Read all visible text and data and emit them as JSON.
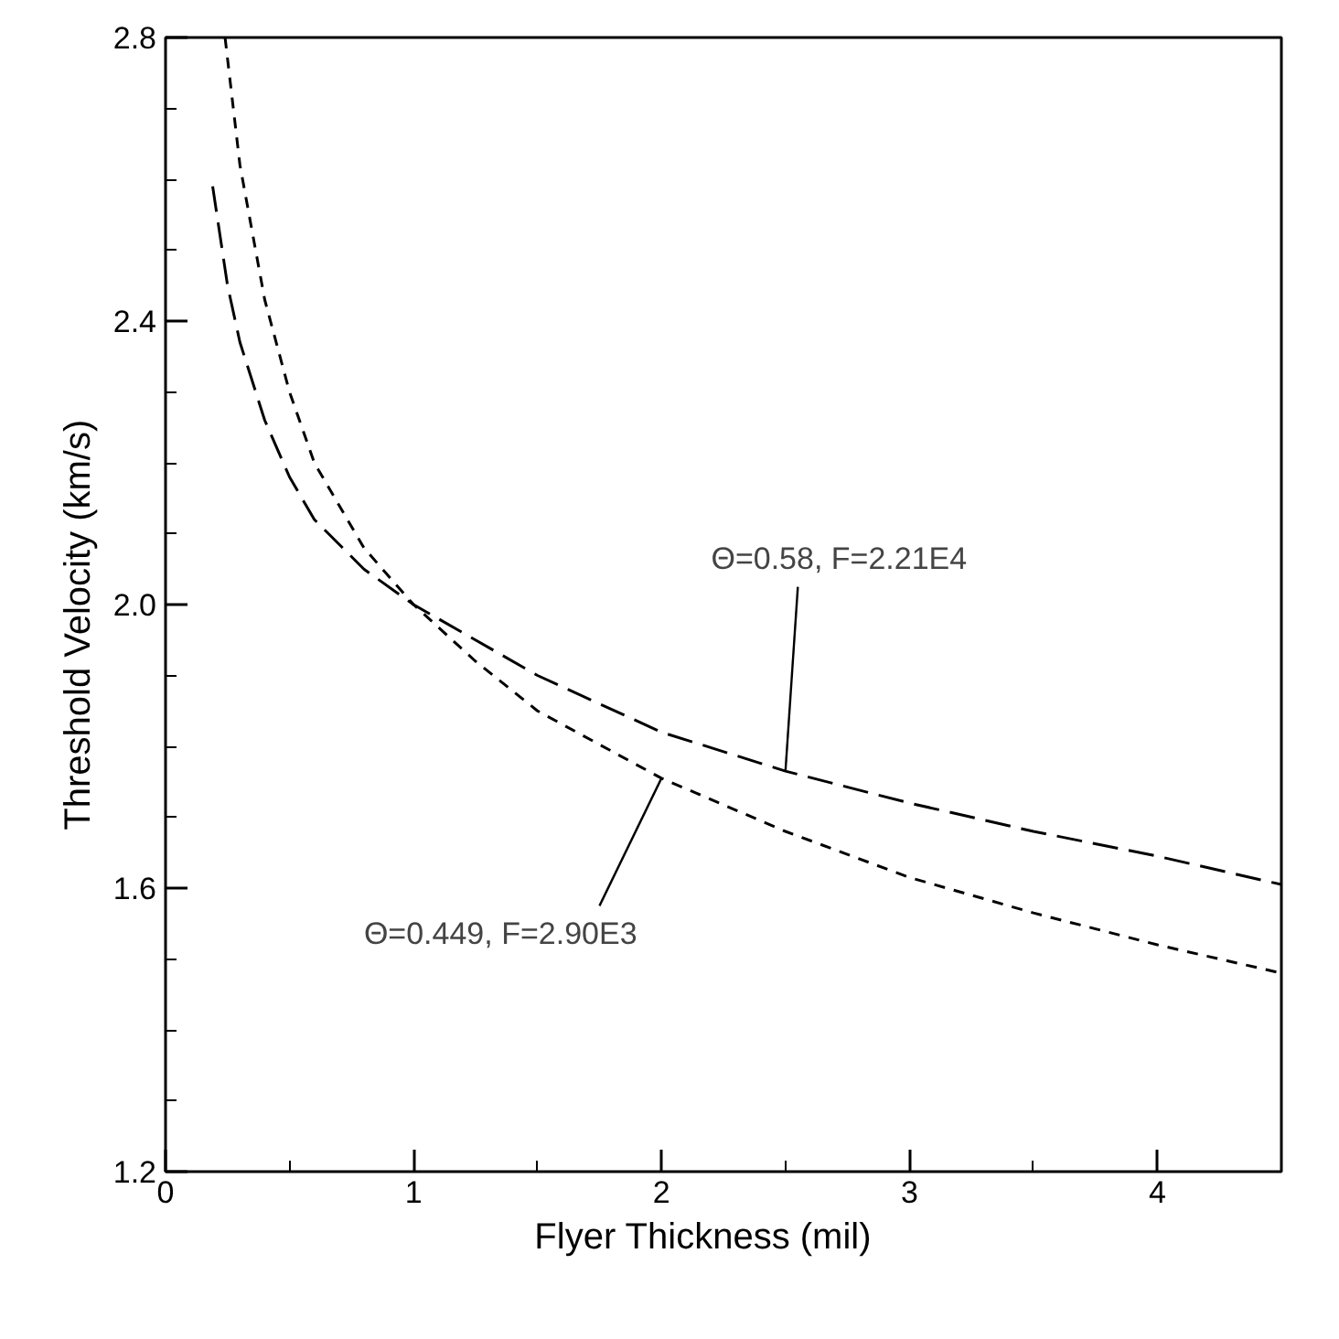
{
  "chart_data": {
    "type": "line",
    "xlabel": "Flyer Thickness     (mil)",
    "ylabel": "Threshold Velocity     (km/s)",
    "xlim": [
      0,
      4.5
    ],
    "ylim": [
      1.2,
      2.8
    ],
    "xticks": [
      0,
      {
        "value": 0.5,
        "label": null
      },
      1,
      {
        "value": 1.5,
        "label": null
      },
      2,
      {
        "value": 2.5,
        "label": null
      },
      3,
      {
        "value": 3.5,
        "label": null
      },
      4
    ],
    "yticks": [
      1.2,
      {
        "value": 1.3,
        "label": null
      },
      {
        "value": 1.4,
        "label": null
      },
      {
        "value": 1.5,
        "label": null
      },
      1.6,
      {
        "value": 1.7,
        "label": null
      },
      {
        "value": 1.8,
        "label": null
      },
      {
        "value": 1.9,
        "label": null
      },
      {
        "value": 2.0,
        "label": "2.0"
      },
      {
        "value": 2.1,
        "label": null
      },
      {
        "value": 2.2,
        "label": null
      },
      {
        "value": 2.3,
        "label": null
      },
      2.4,
      {
        "value": 2.5,
        "label": null
      },
      {
        "value": 2.6,
        "label": null
      },
      {
        "value": 2.7,
        "label": null
      },
      2.8
    ],
    "grid": false,
    "marker": "none",
    "series": [
      {
        "color": "#000000",
        "line_style": "dashed",
        "x": [
          0.19,
          0.25,
          0.3,
          0.4,
          0.5,
          0.6,
          0.8,
          1.0,
          1.25,
          1.5,
          2,
          2.5,
          3,
          3.5,
          4,
          4.5
        ],
        "values": [
          2.59,
          2.45,
          2.37,
          2.26,
          2.18,
          2.12,
          2.05,
          2.0,
          1.95,
          1.9,
          1.82,
          1.765,
          1.72,
          1.68,
          1.645,
          1.605
        ]
      },
      {
        "color": "#000000",
        "line_style": "dashed",
        "x": [
          0.24,
          0.3,
          0.4,
          0.5,
          0.6,
          0.8,
          1.0,
          1.25,
          1.5,
          2,
          2.5,
          3,
          3.5,
          4,
          4.5
        ],
        "values": [
          2.8,
          2.62,
          2.43,
          2.3,
          2.2,
          2.08,
          2.0,
          1.92,
          1.85,
          1.755,
          1.68,
          1.615,
          1.565,
          1.52,
          1.48
        ]
      }
    ],
    "annotations": [
      {
        "text": "Θ=0.58, F=2.21E4",
        "x": 2.5,
        "y": 1.765
      },
      {
        "text": "Θ=0.449, F=2.90E3",
        "x": 2.0,
        "y": 1.755
      }
    ]
  }
}
